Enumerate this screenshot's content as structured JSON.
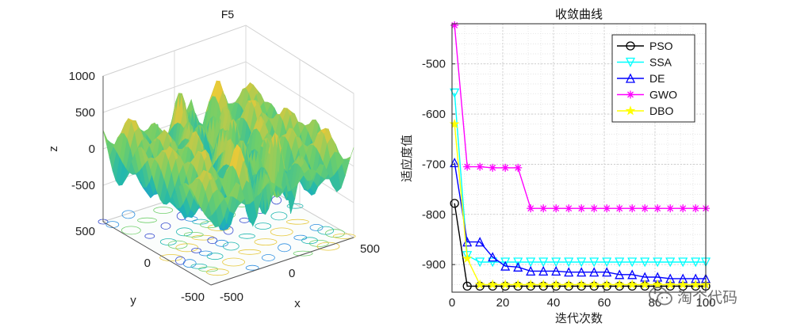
{
  "watermark": "淘个代码",
  "chart_data": [
    {
      "type": "surface",
      "title": "F5",
      "xlabel": "x",
      "ylabel": "y",
      "zlabel": "z",
      "xlim": [
        -500,
        500
      ],
      "ylim": [
        -500,
        500
      ],
      "zlim": [
        -1000,
        1000
      ],
      "xticks": [
        "-500",
        "0",
        "500"
      ],
      "yticks": [
        "500",
        "0",
        "-500"
      ],
      "zticks": [
        "1000",
        "500",
        "0",
        "-500"
      ],
      "grid": true,
      "colormap": [
        "#3b4fd0",
        "#2c8ee0",
        "#1fb7b0",
        "#6fcf6a",
        "#e6c83a",
        "#f7e32a"
      ]
    },
    {
      "type": "line",
      "title": "收敛曲线",
      "xlabel": "迭代次数",
      "ylabel": "适应度值",
      "xlim": [
        0,
        100
      ],
      "ylim": [
        -955,
        -420
      ],
      "xticks": [
        0,
        20,
        40,
        60,
        80,
        100
      ],
      "yticks": [
        -500,
        -600,
        -700,
        -800,
        -900
      ],
      "grid": true,
      "legend": "top-right",
      "series": [
        {
          "name": "PSO",
          "color": "#000000",
          "marker": "circle",
          "x": [
            1,
            6,
            11,
            16,
            21,
            26,
            31,
            36,
            41,
            46,
            51,
            56,
            61,
            66,
            71,
            76,
            81,
            86,
            91,
            96,
            100
          ],
          "y": [
            -778,
            -943,
            -943,
            -943,
            -943,
            -943,
            -943,
            -943,
            -943,
            -943,
            -943,
            -943,
            -943,
            -943,
            -943,
            -943,
            -943,
            -943,
            -943,
            -943,
            -943
          ]
        },
        {
          "name": "SSA",
          "color": "#00ffff",
          "marker": "triangle-down",
          "x": [
            1,
            6,
            11,
            16,
            21,
            26,
            31,
            36,
            41,
            46,
            51,
            56,
            61,
            66,
            71,
            76,
            81,
            86,
            91,
            96,
            100
          ],
          "y": [
            -558,
            -882,
            -895,
            -895,
            -895,
            -895,
            -895,
            -895,
            -895,
            -895,
            -895,
            -895,
            -895,
            -895,
            -895,
            -895,
            -895,
            -895,
            -895,
            -895,
            -895
          ]
        },
        {
          "name": "DE",
          "color": "#0000ff",
          "marker": "triangle-up",
          "x": [
            1,
            6,
            11,
            16,
            21,
            26,
            31,
            36,
            41,
            46,
            51,
            56,
            61,
            66,
            71,
            76,
            81,
            86,
            91,
            96,
            100
          ],
          "y": [
            -697,
            -855,
            -855,
            -885,
            -903,
            -905,
            -913,
            -913,
            -913,
            -915,
            -915,
            -915,
            -915,
            -920,
            -920,
            -925,
            -925,
            -928,
            -928,
            -928,
            -928
          ]
        },
        {
          "name": "GWO",
          "color": "#ff00ff",
          "marker": "asterisk",
          "x": [
            1,
            6,
            11,
            16,
            21,
            26,
            31,
            36,
            41,
            46,
            51,
            56,
            61,
            66,
            71,
            76,
            81,
            86,
            91,
            96,
            100
          ],
          "y": [
            -423,
            -705,
            -705,
            -707,
            -707,
            -707,
            -788,
            -788,
            -788,
            -788,
            -788,
            -788,
            -788,
            -788,
            -788,
            -788,
            -788,
            -788,
            -788,
            -788,
            -788
          ]
        },
        {
          "name": "DBO",
          "color": "#ffff00",
          "marker": "star",
          "x": [
            1,
            6,
            11,
            16,
            21,
            26,
            31,
            36,
            41,
            46,
            51,
            56,
            61,
            66,
            71,
            76,
            81,
            86,
            91,
            96,
            100
          ],
          "y": [
            -620,
            -888,
            -940,
            -940,
            -940,
            -940,
            -940,
            -940,
            -940,
            -940,
            -940,
            -940,
            -940,
            -940,
            -940,
            -940,
            -940,
            -940,
            -940,
            -940,
            -940
          ]
        }
      ]
    }
  ]
}
